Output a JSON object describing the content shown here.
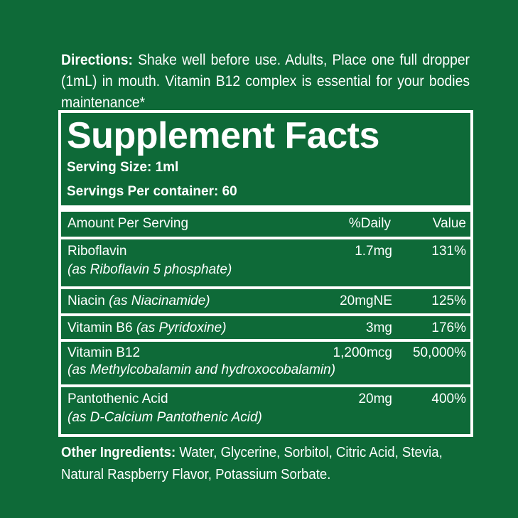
{
  "directions": {
    "label": "Directions:",
    "text": " Shake well before use. Adults, Place one full dropper (1mL) in mouth. Vitamin B12 complex is essential for your bodies maintenance*"
  },
  "facts": {
    "title": "Supplement Facts",
    "serving_size": "Serving Size: 1ml",
    "servings_per_container": "Servings Per container: 60",
    "header": {
      "col0": "Amount Per Serving",
      "col1": "%Daily",
      "col2": "Value"
    },
    "rows": [
      {
        "name": "Riboflavin",
        "detail": "(as Riboflavin 5 phosphate)",
        "amount": "1.7mg",
        "dv": "131%"
      },
      {
        "name": "Niacin ",
        "detail": "(as Niacinamide)",
        "amount": "20mgNE",
        "dv": "125%"
      },
      {
        "name": "Vitamin B6 ",
        "detail": "(as Pyridoxine)",
        "amount": "3mg",
        "dv": "176%"
      },
      {
        "name": "Vitamin B12",
        "detail": "(as Methylcobalamin and hydroxocobalamin)",
        "amount": "1,200mcg",
        "dv": "50,000%"
      },
      {
        "name": "Pantothenic Acid",
        "detail": "(as D-Calcium Pantothenic Acid)",
        "amount": "20mg",
        "dv": "400%"
      }
    ]
  },
  "other": {
    "label": "Other Ingredients:",
    "text": " Water, Glycerine, Sorbitol, Citric Acid, Stevia, Natural Raspberry Flavor, Potassium Sorbate."
  },
  "colors": {
    "background": "#0e6a38",
    "text": "#ffffff"
  }
}
